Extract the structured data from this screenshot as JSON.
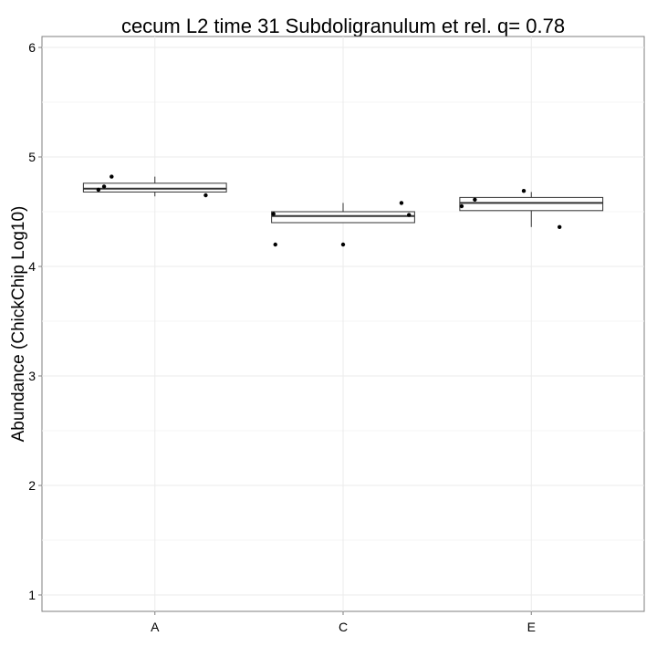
{
  "chart_data": {
    "type": "boxplot",
    "title": "cecum L2 time 31 Subdoligranulum et rel. q= 0.78",
    "xlabel": "",
    "ylabel": "Abundance (ChickChip Log10)",
    "ylim": [
      0.85,
      6.1
    ],
    "yticks": [
      1,
      2,
      3,
      4,
      5,
      6
    ],
    "categories": [
      "A",
      "C",
      "E"
    ],
    "grid": true,
    "boxes": [
      {
        "category": "A",
        "whisker_low": 4.64,
        "q1": 4.68,
        "median": 4.71,
        "q3": 4.76,
        "whisker_high": 4.82
      },
      {
        "category": "C",
        "whisker_low": 4.4,
        "q1": 4.4,
        "median": 4.46,
        "q3": 4.5,
        "whisker_high": 4.58
      },
      {
        "category": "E",
        "whisker_low": 4.36,
        "q1": 4.51,
        "median": 4.58,
        "q3": 4.63,
        "whisker_high": 4.68
      }
    ],
    "points": [
      {
        "category": "A",
        "jitter": -0.3,
        "y": 4.7
      },
      {
        "category": "A",
        "jitter": -0.27,
        "y": 4.73
      },
      {
        "category": "A",
        "jitter": -0.23,
        "y": 4.82
      },
      {
        "category": "A",
        "jitter": 0.27,
        "y": 4.65
      },
      {
        "category": "C",
        "jitter": -0.37,
        "y": 4.48
      },
      {
        "category": "C",
        "jitter": -0.36,
        "y": 4.2
      },
      {
        "category": "C",
        "jitter": 0.0,
        "y": 4.2
      },
      {
        "category": "C",
        "jitter": 0.31,
        "y": 4.58
      },
      {
        "category": "C",
        "jitter": 0.35,
        "y": 4.47
      },
      {
        "category": "E",
        "jitter": -0.37,
        "y": 4.55
      },
      {
        "category": "E",
        "jitter": -0.3,
        "y": 4.61
      },
      {
        "category": "E",
        "jitter": -0.04,
        "y": 4.69
      },
      {
        "category": "E",
        "jitter": 0.15,
        "y": 4.36
      }
    ]
  }
}
